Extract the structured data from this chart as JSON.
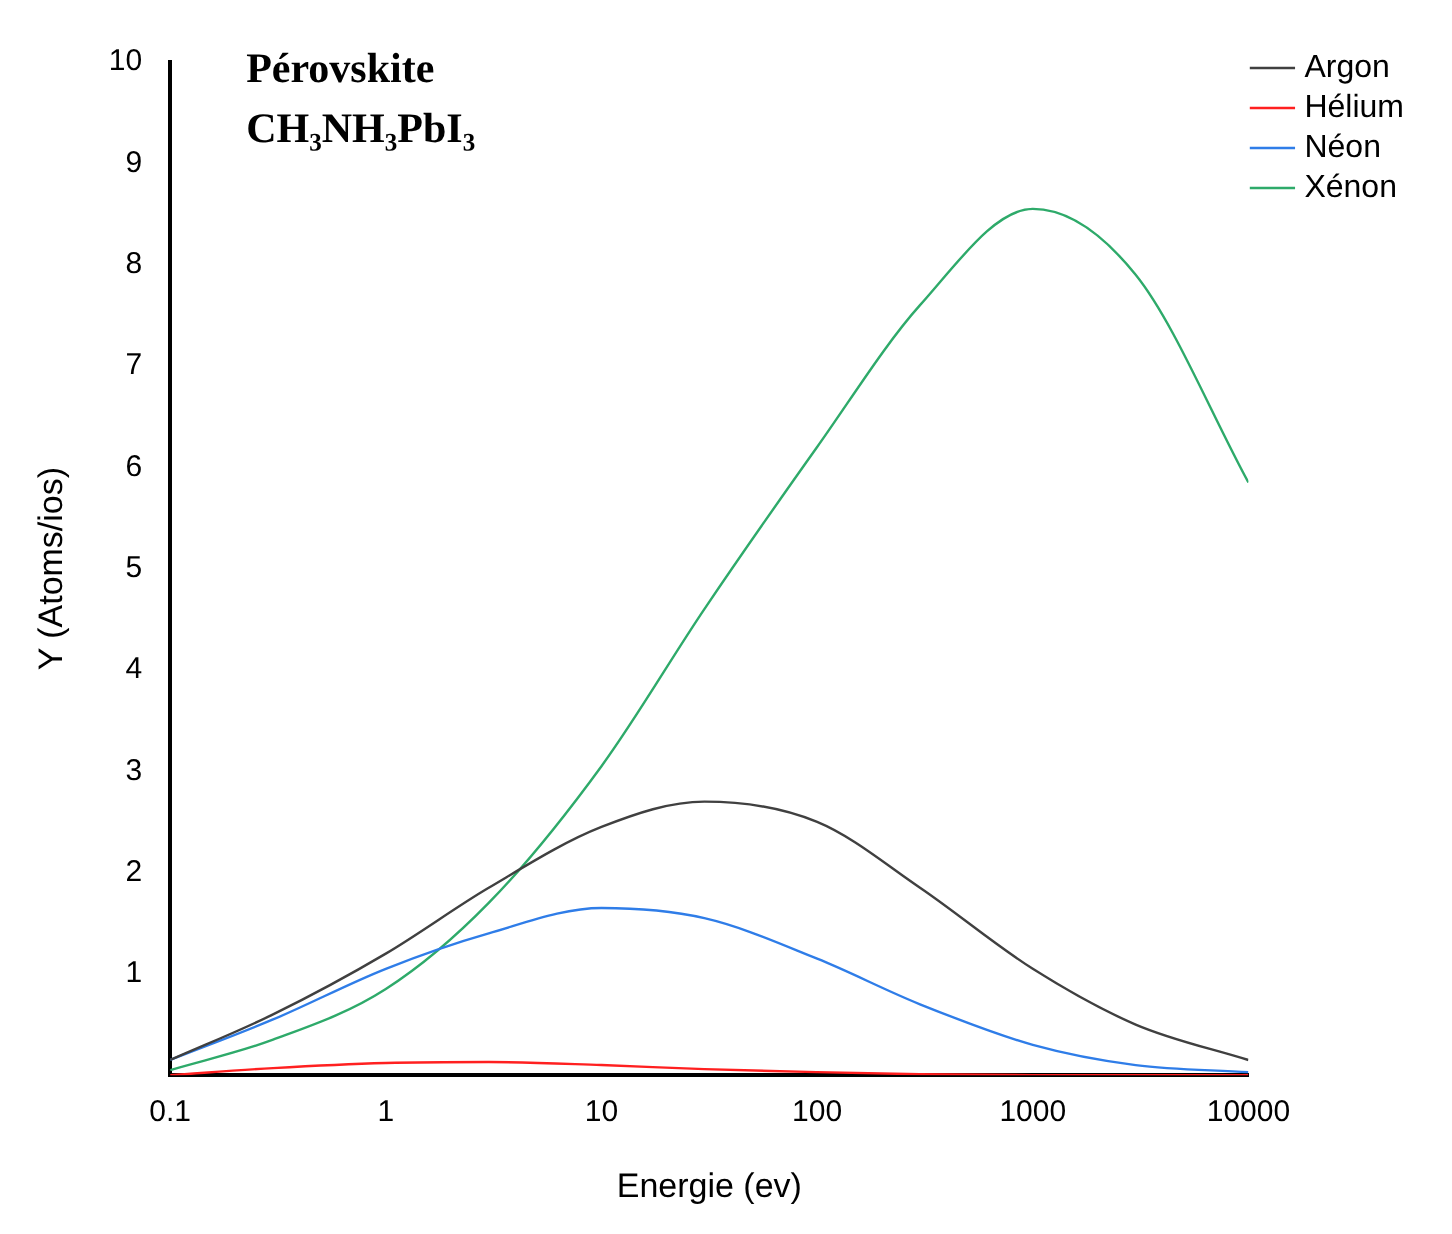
{
  "chart_data": {
    "type": "line",
    "title": "Pérovskite",
    "subtitle": "CH₃NH₃PbI₃",
    "xlabel": "Energie (ev)",
    "ylabel": "Y (Atoms/ios)",
    "log": "x",
    "x": [
      0.1,
      0.3,
      1,
      3,
      10,
      30,
      100,
      300,
      1000,
      3000,
      10000
    ],
    "xlim": [
      0.1,
      10000
    ],
    "xticks": [
      0.1,
      1,
      10,
      100,
      1000,
      10000
    ],
    "ylim": [
      0,
      10
    ],
    "yticks": [
      1,
      2,
      3,
      4,
      5,
      6,
      7,
      8,
      9,
      10
    ],
    "grid": false,
    "legend": "top right",
    "marker": "none",
    "line_style": "solid",
    "series": [
      {
        "name": "Argon",
        "color": "#404040",
        "values": [
          0.15,
          0.6,
          1.2,
          1.85,
          2.45,
          2.7,
          2.5,
          1.85,
          1.05,
          0.5,
          0.15
        ]
      },
      {
        "name": "Hélium",
        "color": "#ff2020",
        "values": [
          0.0,
          0.07,
          0.12,
          0.13,
          0.1,
          0.06,
          0.03,
          0.01,
          0.0,
          0.0,
          0.0
        ]
      },
      {
        "name": "Néon",
        "color": "#2f7de8",
        "values": [
          0.15,
          0.55,
          1.05,
          1.4,
          1.65,
          1.55,
          1.15,
          0.7,
          0.3,
          0.1,
          0.03
        ]
      },
      {
        "name": "Xénon",
        "color": "#2eaa6a",
        "values": [
          0.05,
          0.35,
          0.85,
          1.7,
          3.05,
          4.6,
          6.2,
          7.6,
          8.55,
          7.9,
          5.85
        ]
      }
    ]
  }
}
